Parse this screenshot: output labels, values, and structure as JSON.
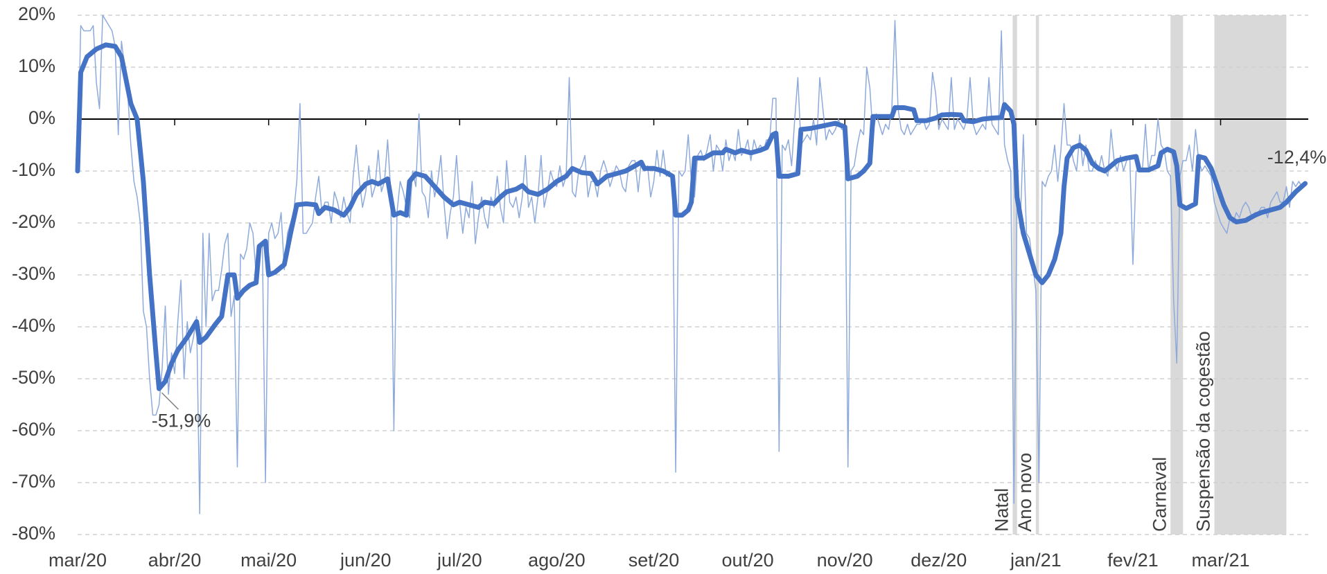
{
  "chart_data": {
    "type": "line",
    "xlim": [
      0,
      393
    ],
    "ylim": [
      -80,
      20
    ],
    "xticks": [
      {
        "value": 0,
        "label": "mar/20"
      },
      {
        "value": 31,
        "label": "abr/20"
      },
      {
        "value": 61,
        "label": "mai/20"
      },
      {
        "value": 92,
        "label": "jun/20"
      },
      {
        "value": 122,
        "label": "jul/20"
      },
      {
        "value": 153,
        "label": "ago/20"
      },
      {
        "value": 184,
        "label": "set/20"
      },
      {
        "value": 214,
        "label": "out/20"
      },
      {
        "value": 245,
        "label": "nov/20"
      },
      {
        "value": 275,
        "label": "dez/20"
      },
      {
        "value": 306,
        "label": "jan/21"
      },
      {
        "value": 337,
        "label": "fev/21"
      },
      {
        "value": 365,
        "label": "mar/21"
      }
    ],
    "yticks": [
      {
        "value": 20,
        "label": "20%"
      },
      {
        "value": 10,
        "label": "10%"
      },
      {
        "value": 0,
        "label": "0%"
      },
      {
        "value": -10,
        "label": "-10%"
      },
      {
        "value": -20,
        "label": "-20%"
      },
      {
        "value": -30,
        "label": "-30%"
      },
      {
        "value": -40,
        "label": "-40%"
      },
      {
        "value": -50,
        "label": "-50%"
      },
      {
        "value": -60,
        "label": "-60%"
      },
      {
        "value": -70,
        "label": "-70%"
      },
      {
        "value": -80,
        "label": "-80%"
      }
    ],
    "grid": true,
    "grid_color": "#d0d0d0",
    "zero_line_color": "#000000",
    "band_color": "#d9d9d9",
    "bands": [
      {
        "label": "Natal",
        "start": 298.6,
        "end": 300
      },
      {
        "label": "Ano novo",
        "start": 306,
        "end": 307
      },
      {
        "label": "Carnaval",
        "start": 349,
        "end": 353
      },
      {
        "label": "Suspensão da cogestão",
        "start": 363,
        "end": 386
      }
    ],
    "series": [
      {
        "color": "#8eaadb",
        "line_width": 1.5,
        "x": [
          0,
          1,
          2,
          3,
          4,
          5,
          6,
          7,
          8,
          9,
          10,
          11,
          12,
          13,
          14,
          15,
          16,
          17,
          18,
          19,
          20,
          21,
          22,
          23,
          24,
          25,
          26,
          27,
          28,
          29,
          30,
          31,
          32,
          33,
          34,
          35,
          36,
          37,
          38,
          39,
          40,
          41,
          42,
          43,
          44,
          45,
          46,
          47,
          48,
          49,
          50,
          51,
          52,
          53,
          54,
          55,
          56,
          57,
          58,
          59,
          60,
          61,
          62,
          63,
          64,
          65,
          66,
          67,
          68,
          69,
          70,
          71,
          72,
          73,
          74,
          75,
          76,
          77,
          78,
          79,
          80,
          81,
          82,
          83,
          84,
          85,
          86,
          87,
          88,
          89,
          90,
          91,
          92,
          93,
          94,
          95,
          96,
          97,
          98,
          99,
          100,
          101,
          102,
          103,
          104,
          105,
          106,
          107,
          108,
          109,
          110,
          111,
          112,
          113,
          114,
          115,
          116,
          117,
          118,
          119,
          120,
          121,
          122,
          123,
          124,
          125,
          126,
          127,
          128,
          129,
          130,
          131,
          132,
          133,
          134,
          135,
          136,
          137,
          138,
          139,
          140,
          141,
          142,
          143,
          144,
          145,
          146,
          147,
          148,
          149,
          150,
          151,
          152,
          153,
          154,
          155,
          156,
          157,
          158,
          159,
          160,
          161,
          162,
          163,
          164,
          165,
          166,
          167,
          168,
          169,
          170,
          171,
          172,
          173,
          174,
          175,
          176,
          177,
          178,
          179,
          180,
          181,
          182,
          183,
          184,
          185,
          186,
          187,
          188,
          189,
          190,
          191,
          192,
          193,
          194,
          195,
          196,
          197,
          198,
          199,
          200,
          201,
          202,
          203,
          204,
          205,
          206,
          207,
          208,
          209,
          210,
          211,
          212,
          213,
          214,
          215,
          216,
          217,
          218,
          219,
          220,
          221,
          222,
          223,
          224,
          225,
          226,
          227,
          228,
          229,
          230,
          231,
          232,
          233,
          234,
          235,
          236,
          237,
          238,
          239,
          240,
          241,
          242,
          243,
          244,
          245,
          246,
          247,
          248,
          249,
          250,
          251,
          252,
          253,
          254,
          255,
          256,
          257,
          258,
          259,
          260,
          261,
          262,
          263,
          264,
          265,
          266,
          267,
          268,
          269,
          270,
          271,
          272,
          273,
          274,
          275,
          276,
          277,
          278,
          279,
          280,
          281,
          282,
          283,
          284,
          285,
          286,
          287,
          288,
          289,
          290,
          291,
          292,
          293,
          294,
          295,
          296,
          297,
          298,
          299,
          300,
          301,
          302,
          303,
          304,
          305,
          306,
          307,
          308,
          309,
          310,
          311,
          312,
          313,
          314,
          315,
          316,
          317,
          318,
          319,
          320,
          321,
          322,
          323,
          324,
          325,
          326,
          327,
          328,
          329,
          330,
          331,
          332,
          333,
          334,
          335,
          336,
          337,
          338,
          339,
          340,
          341,
          342,
          343,
          344,
          345,
          346,
          347,
          348,
          349,
          350,
          351,
          352,
          353,
          354,
          355,
          356,
          357,
          358,
          359,
          360,
          361,
          362,
          363,
          364,
          365,
          366,
          367,
          368,
          369,
          370,
          371,
          372,
          373,
          374,
          375,
          376,
          377,
          378,
          379,
          380,
          381,
          382,
          383,
          384,
          385,
          386,
          387,
          388,
          389,
          390,
          391,
          392
        ],
        "values": [
          -10,
          18,
          17,
          17,
          17,
          18,
          7,
          2,
          20,
          19,
          18,
          17,
          14,
          -3,
          15,
          10,
          5,
          -5,
          -12,
          -15,
          -20,
          -37,
          -40,
          -50,
          -57,
          -57,
          -55,
          -48,
          -36,
          -53,
          -45,
          -49,
          -39,
          -31,
          -50,
          -39,
          -45,
          -42,
          -38,
          -76,
          -22,
          -40,
          -22,
          -35,
          -33,
          -33,
          -29,
          -24,
          -22,
          -38,
          -34,
          -67,
          -26,
          -27,
          -25,
          -20,
          -22,
          -30,
          -26,
          -24,
          -70,
          -22,
          -20,
          -23,
          -22,
          -18,
          -29,
          -22,
          -20,
          -18,
          -12,
          3,
          -22,
          -22,
          -21,
          -20,
          -15,
          -11,
          -18,
          -16,
          -16,
          -20,
          -14,
          -16,
          -19,
          -15,
          -18,
          -20,
          -11,
          -5,
          -12,
          -17,
          -14,
          -9,
          -15,
          -13,
          -6,
          -14,
          -12,
          -4,
          -14,
          -60,
          -18,
          -12,
          -14,
          -17,
          -19,
          -10,
          -13,
          1,
          -14,
          -15,
          -19,
          -10,
          -15,
          -12,
          -7,
          -16,
          -23,
          -18,
          -15,
          -7,
          -16,
          -22,
          -17,
          -19,
          -12,
          -24,
          -19,
          -15,
          -19,
          -21,
          -15,
          -17,
          -11,
          -17,
          -20,
          -8,
          -16,
          -17,
          -15,
          -19,
          -15,
          -7,
          -17,
          -15,
          -20,
          -15,
          -7,
          -17,
          -14,
          -10,
          -12,
          -13,
          -9,
          -13,
          -11,
          8,
          -14,
          -15,
          -10,
          -9,
          -7,
          -15,
          -12,
          -12,
          -15,
          -10,
          -8,
          -10,
          -13,
          -11,
          -9,
          -10,
          -13,
          -14,
          -9,
          -8,
          -8,
          -14,
          -8,
          -10,
          -9,
          -15,
          -12,
          -6,
          -11,
          -6,
          -11,
          -10,
          -12,
          -68,
          -10,
          -11,
          -10,
          -3,
          -12,
          -15,
          -7,
          -6,
          -8,
          -6,
          -3,
          -10,
          -5,
          -6,
          -10,
          -4,
          -8,
          -6,
          -8,
          -2,
          -7,
          -6,
          -4,
          -8,
          -4,
          -6,
          -5,
          -6,
          -4,
          -4,
          4,
          4,
          -64,
          -5,
          -6,
          -4,
          -9,
          0,
          8,
          -5,
          -4,
          -3,
          -4,
          0,
          -5,
          8,
          2,
          -4,
          -2,
          -3,
          -2,
          0,
          -2,
          -2,
          -67,
          -10,
          -9,
          -5,
          -2,
          -3,
          10,
          6,
          -3,
          1,
          -1,
          -3,
          -1,
          -2,
          2,
          19,
          2,
          -2,
          -3,
          -1,
          -3,
          -2,
          -1,
          -1,
          0,
          -2,
          -1,
          9,
          5,
          -2,
          0,
          -1,
          -2,
          8,
          -2,
          0,
          -1,
          -2,
          0,
          8,
          -1,
          -3,
          -2,
          -1,
          -2,
          8,
          -1,
          -2,
          -3,
          17,
          -5,
          -8,
          -10,
          -74,
          -15,
          -21,
          -3,
          -22,
          -23,
          -28,
          -33,
          -70,
          -12,
          -13,
          -11,
          -10,
          -5,
          -12,
          -6,
          3,
          -5,
          -5,
          -8,
          -10,
          -3,
          -9,
          -5,
          -10,
          -10,
          -8,
          -10,
          -7,
          -10,
          -11,
          -2,
          -8,
          -10,
          -7,
          -10,
          -8,
          -7,
          -28,
          -10,
          -10,
          -10,
          -1,
          -10,
          -7,
          -7,
          0,
          -5,
          -6,
          -10,
          -11,
          -35,
          -47,
          -11,
          -8,
          -8,
          -5,
          -10,
          -2,
          -8,
          -10,
          -9,
          -10,
          -11,
          -16,
          -18,
          -20,
          -21,
          -22,
          -19,
          -20,
          -18,
          -19,
          -17,
          -16,
          -17,
          -19,
          -18,
          -18,
          -17,
          -17,
          -19,
          -16,
          -15,
          -14,
          -16,
          -16,
          -13,
          -17,
          -12,
          -13,
          -12,
          -13,
          -12.4
        ]
      },
      {
        "color": "#4472c4",
        "line_width": 7,
        "x": [
          0,
          1,
          3,
          6,
          9,
          12,
          14,
          17,
          19,
          21,
          23,
          25,
          26,
          28,
          30,
          32,
          35,
          38,
          39,
          41,
          44,
          46,
          48,
          50,
          51,
          53,
          55,
          57,
          58,
          60,
          61,
          63,
          66,
          68,
          70,
          73,
          76,
          77,
          79,
          82,
          85,
          87,
          89,
          92,
          94,
          96,
          99,
          101,
          103,
          105,
          106,
          108,
          111,
          114,
          117,
          120,
          122,
          125,
          128,
          130,
          133,
          135,
          137,
          140,
          142,
          144,
          147,
          150,
          153,
          156,
          158,
          161,
          164,
          166,
          169,
          172,
          175,
          178,
          180,
          181,
          184,
          187,
          190,
          191,
          193,
          195,
          196,
          197,
          200,
          203,
          206,
          207,
          210,
          212,
          215,
          218,
          220,
          222,
          223,
          224,
          227,
          230,
          231,
          234,
          238,
          242,
          245,
          246,
          249,
          251,
          253,
          254,
          257,
          260,
          261,
          264,
          267,
          268,
          271,
          274,
          276,
          279,
          282,
          283,
          286,
          289,
          292,
          295,
          296,
          298,
          299,
          300,
          302,
          304,
          306,
          308,
          310,
          312,
          314,
          315,
          316,
          318,
          320,
          322,
          324,
          326,
          328,
          330,
          332,
          335,
          338,
          339,
          342,
          345,
          346,
          348,
          350,
          351,
          352,
          354,
          357,
          358,
          360,
          362,
          364,
          366,
          368,
          370,
          373,
          376,
          378,
          381,
          384,
          386,
          389,
          392
        ],
        "values": [
          -10,
          9,
          12,
          13.5,
          14.3,
          14,
          12,
          3,
          0,
          -12,
          -30,
          -45,
          -51.9,
          -50.5,
          -47,
          -44.5,
          -42,
          -39,
          -43,
          -42,
          -39.5,
          -38,
          -30,
          -30,
          -34.5,
          -33,
          -32,
          -31.5,
          -24.5,
          -23.5,
          -30,
          -29.5,
          -28,
          -22,
          -16.5,
          -16.3,
          -16.5,
          -18.2,
          -17,
          -17.5,
          -18.5,
          -17,
          -14.5,
          -12.5,
          -12,
          -12.5,
          -11.5,
          -18.5,
          -18,
          -18.5,
          -12,
          -10.5,
          -11,
          -13,
          -15,
          -16.5,
          -16,
          -16.5,
          -17,
          -16,
          -16.3,
          -15,
          -14,
          -13.5,
          -12.8,
          -14,
          -14.5,
          -13.5,
          -12,
          -11,
          -9.5,
          -10.3,
          -10.5,
          -12.5,
          -11,
          -10.5,
          -10,
          -9,
          -8.3,
          -9.5,
          -9.5,
          -10,
          -11,
          -18.5,
          -18.5,
          -17.5,
          -16,
          -7.5,
          -7.5,
          -6.5,
          -6.5,
          -5.8,
          -6.5,
          -6,
          -6.5,
          -6,
          -5.5,
          -3,
          -2.7,
          -11,
          -11,
          -10.5,
          -2,
          -1.8,
          -1.3,
          -0.8,
          -1.5,
          -11.5,
          -11,
          -10,
          -8.5,
          0.5,
          0.5,
          0.5,
          2.2,
          2.2,
          1.8,
          -0.3,
          -0.3,
          0.2,
          0.8,
          0.9,
          0.8,
          -0.3,
          -0.5,
          0,
          0.2,
          0.3,
          2.8,
          1.5,
          -1,
          -15,
          -22,
          -26,
          -30,
          -31.5,
          -30,
          -27,
          -22,
          -13,
          -7.5,
          -5.5,
          -5,
          -6,
          -8.5,
          -9.5,
          -10,
          -9,
          -8,
          -7.5,
          -7.2,
          -9.8,
          -9.8,
          -9,
          -6.5,
          -5.8,
          -6.3,
          -9,
          -16.5,
          -17.2,
          -16.3,
          -7.2,
          -7.5,
          -9.5,
          -13,
          -16.5,
          -19,
          -19.8,
          -19.5,
          -18.5,
          -18,
          -17.5,
          -17,
          -16,
          -14,
          -12.4
        ]
      }
    ],
    "annotations": [
      {
        "text": "-51,9%",
        "x": 26,
        "y": -51.9,
        "position": "below"
      },
      {
        "text": "-12,4%",
        "x": 392,
        "y": -12.4,
        "position": "above"
      }
    ]
  }
}
